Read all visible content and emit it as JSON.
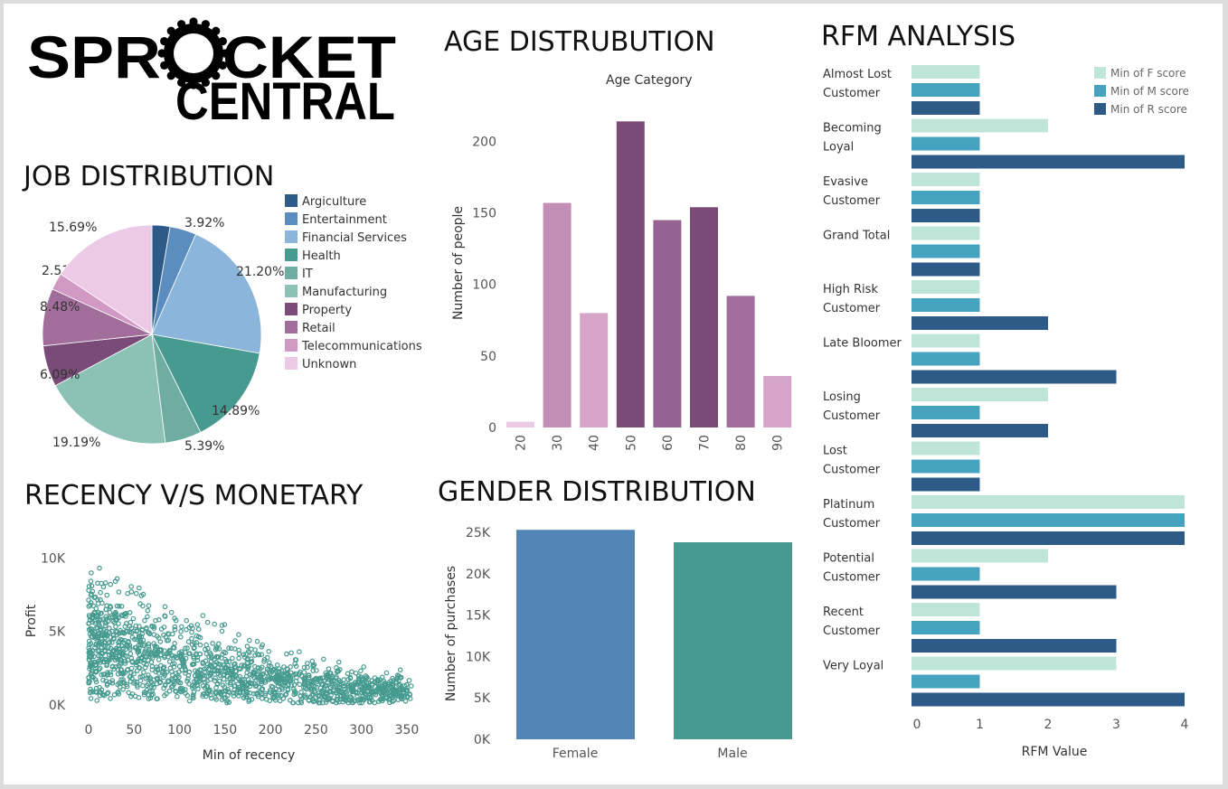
{
  "logo": {
    "line1": "SPROCKET",
    "line2": "CENTRAL"
  },
  "chart_data": [
    {
      "type": "pie",
      "title": "JOB DISTRIBUTION",
      "categories": [
        "Argiculture",
        "Entertainment",
        "Financial Services",
        "Health",
        "IT",
        "Manufacturing",
        "Property",
        "Retail",
        "Telecommunications",
        "Unknown"
      ],
      "values": [
        2.66,
        3.92,
        21.2,
        14.89,
        5.39,
        19.19,
        6.09,
        8.48,
        2.51,
        15.69
      ],
      "labels": [
        "",
        "3.92%",
        "21.20%",
        "14.89%",
        "5.39%",
        "19.19%",
        "6.09%",
        "8.48%",
        "2.51%",
        "15.69%"
      ],
      "colors": [
        "#2e5a87",
        "#5b8ebf",
        "#8cb5dc",
        "#469a8f",
        "#6fada3",
        "#8cc1b6",
        "#7a4b78",
        "#a16e9b",
        "#cf99c3",
        "#ecc9e4"
      ],
      "legend_position": "right"
    },
    {
      "type": "bar",
      "title": "AGE DISTRUBUTION",
      "subtitle": "Age Category",
      "categories": [
        "20",
        "30",
        "40",
        "50",
        "60",
        "70",
        "80",
        "90"
      ],
      "values": [
        4,
        157,
        80,
        214,
        145,
        154,
        92,
        36
      ],
      "ylabel": "Number of people",
      "ylim": [
        0,
        230
      ],
      "yticks": [
        0,
        50,
        100,
        150,
        200
      ],
      "colors": [
        "#ecc9e4",
        "#c48fb6",
        "#d5a4c8",
        "#7b4b78",
        "#956393",
        "#7b4b78",
        "#a16e9b",
        "#d5a4c8"
      ]
    },
    {
      "type": "scatter",
      "title": "RECENCY V/S MONETARY",
      "xlabel": "Min of recency",
      "ylabel": "Profit",
      "xticks": [
        0,
        50,
        100,
        150,
        200,
        250,
        300,
        350
      ],
      "yticks": [
        "0K",
        "5K",
        "10K"
      ],
      "xlim": [
        0,
        355
      ],
      "ylim": [
        0,
        11800
      ],
      "color": "#469a8f",
      "point_count": "dense cloud of approx. 1800 customers; profit mostly 0K-7K, max near 11K at low recency, thinning toward 350"
    },
    {
      "type": "bar",
      "title": "GENDER DISTRIBUTION",
      "categories": [
        "Female",
        "Male"
      ],
      "values": [
        25300,
        23800
      ],
      "ylabel": "Number of purchases",
      "ylim": [
        0,
        26000
      ],
      "yticks": [
        "0K",
        "5K",
        "10K",
        "15K",
        "20K",
        "25K"
      ],
      "colors": [
        "#5284b5",
        "#469a8f"
      ]
    },
    {
      "type": "bar",
      "orientation": "horizontal",
      "title": "RFM ANALYSIS",
      "xlabel": "RFM Value",
      "xticks": [
        0,
        1,
        2,
        3,
        4
      ],
      "xlim": [
        0,
        4
      ],
      "categories": [
        [
          "Almost Lost",
          "Customer"
        ],
        [
          "Becoming",
          "Loyal"
        ],
        [
          "Evasive",
          "Customer"
        ],
        [
          "Grand Total"
        ],
        [
          "High Risk",
          "Customer"
        ],
        [
          "Late Bloomer"
        ],
        [
          "Losing",
          "Customer"
        ],
        [
          "Lost",
          "Customer"
        ],
        [
          "Platinum",
          "Customer"
        ],
        [
          "Potential",
          "Customer"
        ],
        [
          "Recent",
          "Customer"
        ],
        [
          "Very Loyal"
        ]
      ],
      "series": [
        {
          "name": "Min of F score",
          "color": "#bfe5d9",
          "values": [
            1,
            2,
            1,
            1,
            1,
            1,
            2,
            1,
            4,
            2,
            1,
            3
          ]
        },
        {
          "name": "Min of M score",
          "color": "#46a3bf",
          "values": [
            1,
            1,
            1,
            1,
            1,
            1,
            1,
            1,
            4,
            1,
            1,
            1
          ]
        },
        {
          "name": "Min of R score",
          "color": "#2d5a87",
          "values": [
            1,
            4,
            1,
            1,
            2,
            3,
            2,
            1,
            4,
            3,
            3,
            4
          ]
        }
      ],
      "legend_position": "top-right"
    }
  ]
}
